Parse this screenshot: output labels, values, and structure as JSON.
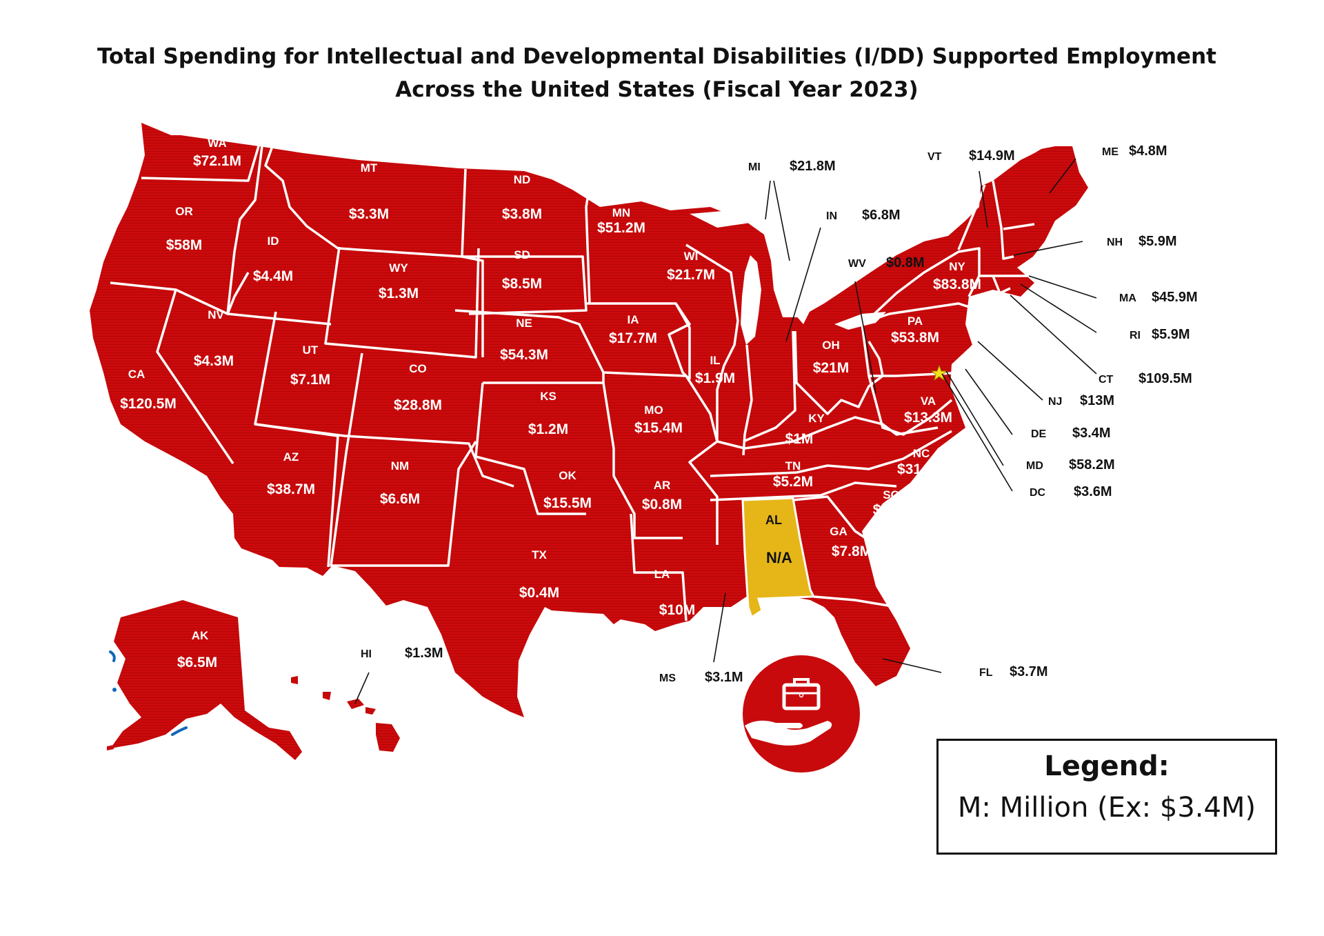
{
  "title": {
    "line1": "Total Spending for Intellectual and Developmental Disabilities (I/DD) Supported Employment",
    "line2": "Across the United States (Fiscal Year 2023)"
  },
  "colors": {
    "state_fill": "#cc0a0c",
    "no_data_fill": "#e6b619",
    "border": "#ffffff",
    "water": "#1566b8",
    "label_inside": "#ffffff",
    "label_outside": "#111111"
  },
  "states": [
    {
      "abbr": "WA",
      "value": "$72.1M"
    },
    {
      "abbr": "OR",
      "value": "$58M"
    },
    {
      "abbr": "CA",
      "value": "$120.5M"
    },
    {
      "abbr": "ID",
      "value": "$4.4M"
    },
    {
      "abbr": "NV",
      "value": "$4.3M"
    },
    {
      "abbr": "MT",
      "value": "$3.3M"
    },
    {
      "abbr": "WY",
      "value": "$1.3M"
    },
    {
      "abbr": "UT",
      "value": "$7.1M"
    },
    {
      "abbr": "AZ",
      "value": "$38.7M"
    },
    {
      "abbr": "CO",
      "value": "$28.8M"
    },
    {
      "abbr": "NM",
      "value": "$6.6M"
    },
    {
      "abbr": "ND",
      "value": "$3.8M"
    },
    {
      "abbr": "SD",
      "value": "$8.5M"
    },
    {
      "abbr": "NE",
      "value": "$54.3M"
    },
    {
      "abbr": "KS",
      "value": "$1.2M"
    },
    {
      "abbr": "OK",
      "value": "$15.5M"
    },
    {
      "abbr": "TX",
      "value": "$0.4M"
    },
    {
      "abbr": "MN",
      "value": "$51.2M"
    },
    {
      "abbr": "IA",
      "value": "$17.7M"
    },
    {
      "abbr": "MO",
      "value": "$15.4M"
    },
    {
      "abbr": "AR",
      "value": "$0.8M"
    },
    {
      "abbr": "LA",
      "value": "$10M"
    },
    {
      "abbr": "WI",
      "value": "$21.7M"
    },
    {
      "abbr": "IL",
      "value": "$1.9M"
    },
    {
      "abbr": "KY",
      "value": "$1M"
    },
    {
      "abbr": "TN",
      "value": "$5.2M"
    },
    {
      "abbr": "AL",
      "value": "N/A"
    },
    {
      "abbr": "GA",
      "value": "$7.8M"
    },
    {
      "abbr": "SC",
      "value": "$14M"
    },
    {
      "abbr": "NC",
      "value": "$31.1M"
    },
    {
      "abbr": "VA",
      "value": "$13.3M"
    },
    {
      "abbr": "OH",
      "value": "$21M"
    },
    {
      "abbr": "PA",
      "value": "$53.8M"
    },
    {
      "abbr": "NY",
      "value": "$83.8M"
    },
    {
      "abbr": "AK",
      "value": "$6.5M"
    },
    {
      "abbr": "MI",
      "value": "$21.8M"
    },
    {
      "abbr": "IN",
      "value": "$6.8M"
    },
    {
      "abbr": "WV",
      "value": "$0.8M"
    },
    {
      "abbr": "VT",
      "value": "$14.9M"
    },
    {
      "abbr": "ME",
      "value": "$4.8M"
    },
    {
      "abbr": "NH",
      "value": "$5.9M"
    },
    {
      "abbr": "MA",
      "value": "$45.9M"
    },
    {
      "abbr": "RI",
      "value": "$5.9M"
    },
    {
      "abbr": "CT",
      "value": "$109.5M"
    },
    {
      "abbr": "NJ",
      "value": "$13M"
    },
    {
      "abbr": "DE",
      "value": "$3.4M"
    },
    {
      "abbr": "MD",
      "value": "$58.2M"
    },
    {
      "abbr": "DC",
      "value": "$3.6M"
    },
    {
      "abbr": "FL",
      "value": "$3.7M"
    },
    {
      "abbr": "MS",
      "value": "$3.1M"
    },
    {
      "abbr": "HI",
      "value": "$1.3M"
    }
  ],
  "legend": {
    "heading": "Legend:",
    "text": "M: Million (Ex: $3.4M)"
  },
  "icon": "hand-holding-briefcase-icon"
}
